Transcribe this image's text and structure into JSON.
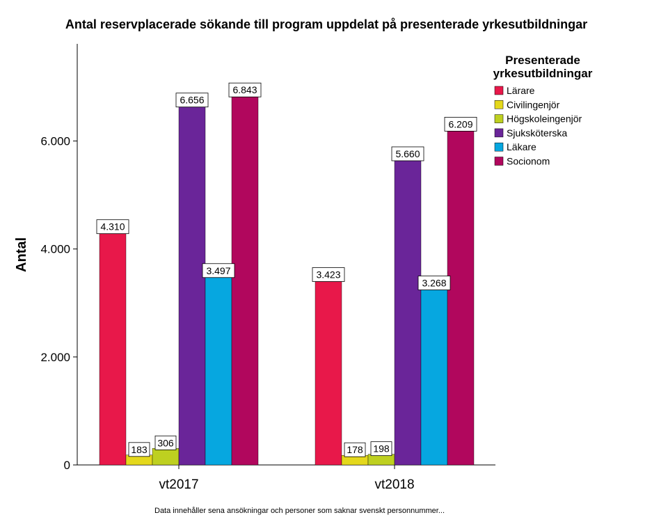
{
  "chart_data": {
    "type": "bar",
    "title": "Antal reservplacerade sökande till program uppdelat på presenterade yrkesutbildningar",
    "xlabel": "",
    "ylabel": "Antal",
    "ylim": [
      0,
      7800
    ],
    "yticks": [
      {
        "value": 0,
        "label": "0"
      },
      {
        "value": 2000,
        "label": "2.000"
      },
      {
        "value": 4000,
        "label": "4.000"
      },
      {
        "value": 6000,
        "label": "6.000"
      }
    ],
    "categories": [
      "vt2017",
      "vt2018"
    ],
    "legend_title": [
      "Presenterade",
      "yrkesutbildningar"
    ],
    "series": [
      {
        "name": "Lärare",
        "color": "#e8184a",
        "values": [
          4310,
          3423
        ],
        "labels": [
          "4.310",
          "3.423"
        ]
      },
      {
        "name": "Civilingenjör",
        "color": "#e4d81c",
        "values": [
          183,
          178
        ],
        "labels": [
          "183",
          "178"
        ]
      },
      {
        "name": "Högskoleingenjör",
        "color": "#bed020",
        "values": [
          306,
          198
        ],
        "labels": [
          "306",
          "198"
        ]
      },
      {
        "name": "Sjuksköterska",
        "color": "#6a2599",
        "values": [
          6656,
          5660
        ],
        "labels": [
          "6.656",
          "5.660"
        ]
      },
      {
        "name": "Läkare",
        "color": "#06a7e0",
        "values": [
          3497,
          3268
        ],
        "labels": [
          "3.497",
          "3.268"
        ]
      },
      {
        "name": "Socionom",
        "color": "#b1075d",
        "values": [
          6843,
          6209
        ],
        "labels": [
          "6.843",
          "6.209"
        ]
      }
    ],
    "footnote": "Data innehåller sena ansökningar och personer som saknar svenskt personnummer..."
  }
}
